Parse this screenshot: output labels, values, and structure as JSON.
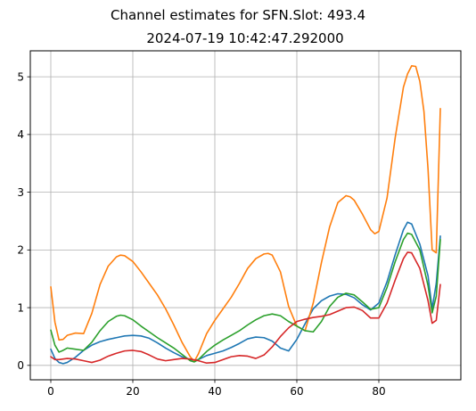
{
  "chart_data": {
    "type": "line",
    "title_line1": "Channel estimates for SFN.Slot: 493.4",
    "title_line2": "2024-07-19 10:42:47.292000",
    "xlabel": "",
    "ylabel": "",
    "xlim": [
      -5,
      100
    ],
    "ylim": [
      -0.25,
      5.45
    ],
    "xticks": [
      0,
      20,
      40,
      60,
      80
    ],
    "yticks": [
      0,
      1,
      2,
      3,
      4,
      5
    ],
    "grid": true,
    "legend": "none",
    "colors": [
      "#1f77b4",
      "#ff7f0e",
      "#2ca02c",
      "#d62728"
    ],
    "series": [
      {
        "color": "#1f77b4",
        "x": [
          0,
          1,
          2,
          3,
          4,
          6,
          8,
          10,
          12,
          14,
          16,
          18,
          20,
          22,
          24,
          26,
          28,
          30,
          32,
          34,
          35,
          36,
          38,
          40,
          42,
          44,
          46,
          48,
          50,
          52,
          54,
          56,
          58,
          60,
          62,
          64,
          66,
          68,
          70,
          72,
          74,
          76,
          78,
          80,
          82,
          84,
          86,
          87,
          88,
          90,
          92,
          93,
          94,
          95
        ],
        "y": [
          0.28,
          0.12,
          0.05,
          0.03,
          0.05,
          0.14,
          0.26,
          0.35,
          0.41,
          0.45,
          0.48,
          0.51,
          0.52,
          0.51,
          0.47,
          0.39,
          0.3,
          0.22,
          0.15,
          0.1,
          0.09,
          0.1,
          0.17,
          0.21,
          0.25,
          0.31,
          0.38,
          0.46,
          0.49,
          0.48,
          0.42,
          0.3,
          0.25,
          0.45,
          0.72,
          0.98,
          1.12,
          1.2,
          1.24,
          1.23,
          1.17,
          1.05,
          0.96,
          1.08,
          1.45,
          1.92,
          2.35,
          2.48,
          2.45,
          2.1,
          1.55,
          0.98,
          1.42,
          2.24
        ]
      },
      {
        "color": "#ff7f0e",
        "x": [
          0,
          1,
          2,
          3,
          4,
          6,
          8,
          10,
          12,
          14,
          16,
          17,
          18,
          20,
          22,
          24,
          26,
          28,
          30,
          32,
          34,
          35,
          36,
          38,
          40,
          42,
          44,
          46,
          48,
          50,
          52,
          53,
          54,
          56,
          58,
          60,
          62,
          64,
          66,
          68,
          70,
          72,
          73,
          74,
          76,
          78,
          79,
          80,
          82,
          84,
          86,
          87,
          88,
          89,
          90,
          91,
          92,
          93,
          94,
          95
        ],
        "y": [
          1.36,
          0.75,
          0.44,
          0.45,
          0.52,
          0.56,
          0.55,
          0.9,
          1.4,
          1.72,
          1.88,
          1.91,
          1.9,
          1.8,
          1.62,
          1.42,
          1.22,
          0.98,
          0.7,
          0.4,
          0.15,
          0.07,
          0.2,
          0.55,
          0.78,
          0.98,
          1.18,
          1.42,
          1.68,
          1.85,
          1.93,
          1.94,
          1.91,
          1.62,
          1.02,
          0.68,
          0.6,
          1.08,
          1.78,
          2.4,
          2.82,
          2.94,
          2.92,
          2.86,
          2.62,
          2.35,
          2.28,
          2.32,
          2.9,
          3.95,
          4.82,
          5.05,
          5.19,
          5.18,
          4.92,
          4.4,
          3.4,
          2.0,
          1.95,
          4.45
        ]
      },
      {
        "color": "#2ca02c",
        "x": [
          0,
          1,
          2,
          3,
          4,
          6,
          8,
          10,
          12,
          14,
          16,
          17,
          18,
          20,
          22,
          24,
          26,
          28,
          30,
          32,
          34,
          35,
          36,
          38,
          40,
          42,
          44,
          46,
          48,
          50,
          52,
          54,
          56,
          58,
          60,
          62,
          64,
          66,
          68,
          70,
          72,
          74,
          76,
          78,
          80,
          82,
          84,
          86,
          87,
          88,
          90,
          92,
          93,
          94,
          95
        ],
        "y": [
          0.61,
          0.35,
          0.23,
          0.26,
          0.3,
          0.28,
          0.26,
          0.4,
          0.6,
          0.76,
          0.85,
          0.87,
          0.86,
          0.79,
          0.68,
          0.58,
          0.48,
          0.39,
          0.3,
          0.19,
          0.08,
          0.06,
          0.1,
          0.24,
          0.35,
          0.44,
          0.52,
          0.6,
          0.7,
          0.79,
          0.86,
          0.89,
          0.86,
          0.76,
          0.68,
          0.6,
          0.58,
          0.76,
          1.02,
          1.18,
          1.25,
          1.22,
          1.1,
          0.97,
          1.0,
          1.35,
          1.8,
          2.18,
          2.29,
          2.27,
          2.0,
          1.38,
          0.91,
          1.2,
          2.18
        ]
      },
      {
        "color": "#d62728",
        "x": [
          0,
          1,
          2,
          3,
          4,
          6,
          8,
          10,
          12,
          14,
          16,
          18,
          20,
          22,
          24,
          26,
          28,
          30,
          32,
          34,
          36,
          38,
          40,
          42,
          44,
          46,
          48,
          50,
          52,
          54,
          56,
          58,
          60,
          62,
          64,
          66,
          68,
          70,
          72,
          74,
          76,
          78,
          80,
          82,
          84,
          86,
          87,
          88,
          90,
          92,
          93,
          94,
          95
        ],
        "y": [
          0.15,
          0.1,
          0.1,
          0.11,
          0.12,
          0.11,
          0.08,
          0.05,
          0.09,
          0.16,
          0.21,
          0.25,
          0.26,
          0.24,
          0.18,
          0.11,
          0.08,
          0.1,
          0.12,
          0.11,
          0.08,
          0.04,
          0.05,
          0.1,
          0.15,
          0.17,
          0.16,
          0.12,
          0.18,
          0.32,
          0.5,
          0.65,
          0.76,
          0.8,
          0.83,
          0.85,
          0.88,
          0.94,
          1.0,
          1.01,
          0.95,
          0.82,
          0.82,
          1.08,
          1.48,
          1.85,
          1.96,
          1.95,
          1.68,
          1.12,
          0.73,
          0.78,
          1.4
        ]
      }
    ]
  }
}
